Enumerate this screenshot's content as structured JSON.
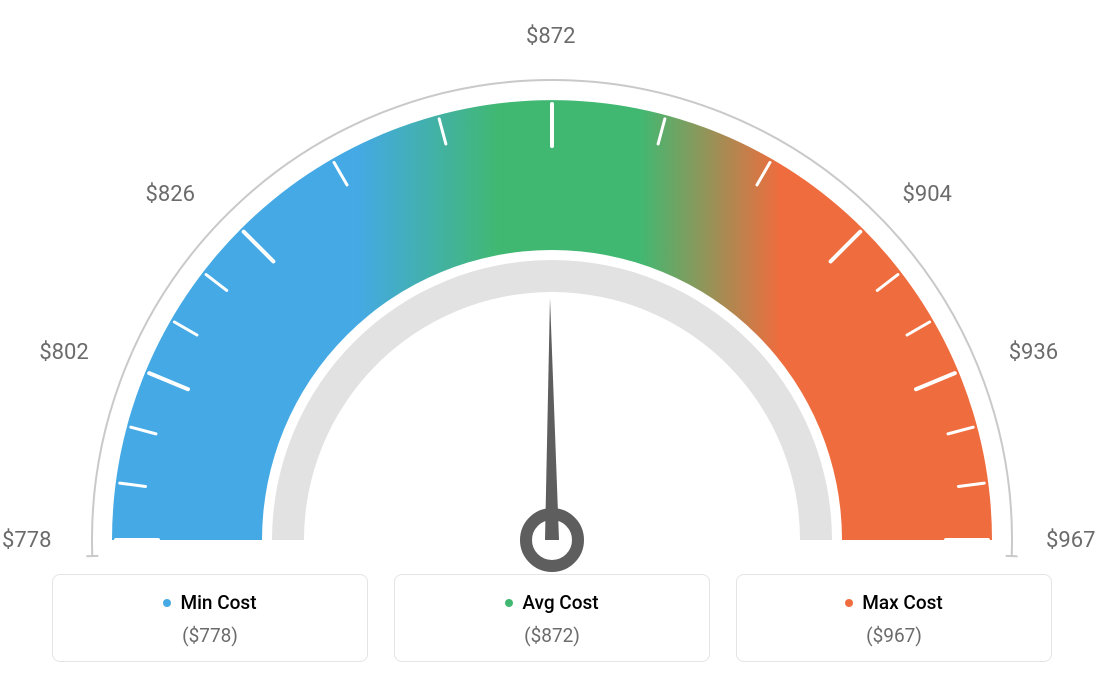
{
  "gauge": {
    "type": "gauge",
    "min": 778,
    "max": 967,
    "avg": 872,
    "needle_value": 872,
    "tick_labels": [
      "$778",
      "$802",
      "$826",
      "$872",
      "$904",
      "$936",
      "$967"
    ],
    "tick_angles_deg": [
      -90,
      -67.5,
      -45,
      0,
      45,
      67.5,
      90
    ],
    "minor_ticks_between": 2,
    "colors": {
      "min_color": "#44a9e4",
      "avg_color": "#41b871",
      "max_color": "#ef6c3e",
      "arc_outer_stroke": "#c9c9c9",
      "inner_ring": "#e2e2e2",
      "tick_stroke": "#ffffff",
      "needle": "#5e5e5e",
      "label_text": "#6b6b6b",
      "card_border": "#e4e4e4",
      "background": "#ffffff"
    },
    "radii": {
      "outer_arc": 460,
      "band_outer": 440,
      "band_inner": 290,
      "inner_ring_outer": 280,
      "inner_ring_inner": 248
    },
    "stroke_widths": {
      "outer_arc": 2,
      "major_tick": 4,
      "minor_tick": 3,
      "needle": 1
    },
    "label_fontsize": 22,
    "legend_fontsize": 19
  },
  "legend": {
    "items": [
      {
        "title": "Min Cost",
        "value": "($778)",
        "color": "#44a9e4"
      },
      {
        "title": "Avg Cost",
        "value": "($872)",
        "color": "#41b871"
      },
      {
        "title": "Max Cost",
        "value": "($967)",
        "color": "#ef6c3e"
      }
    ]
  }
}
